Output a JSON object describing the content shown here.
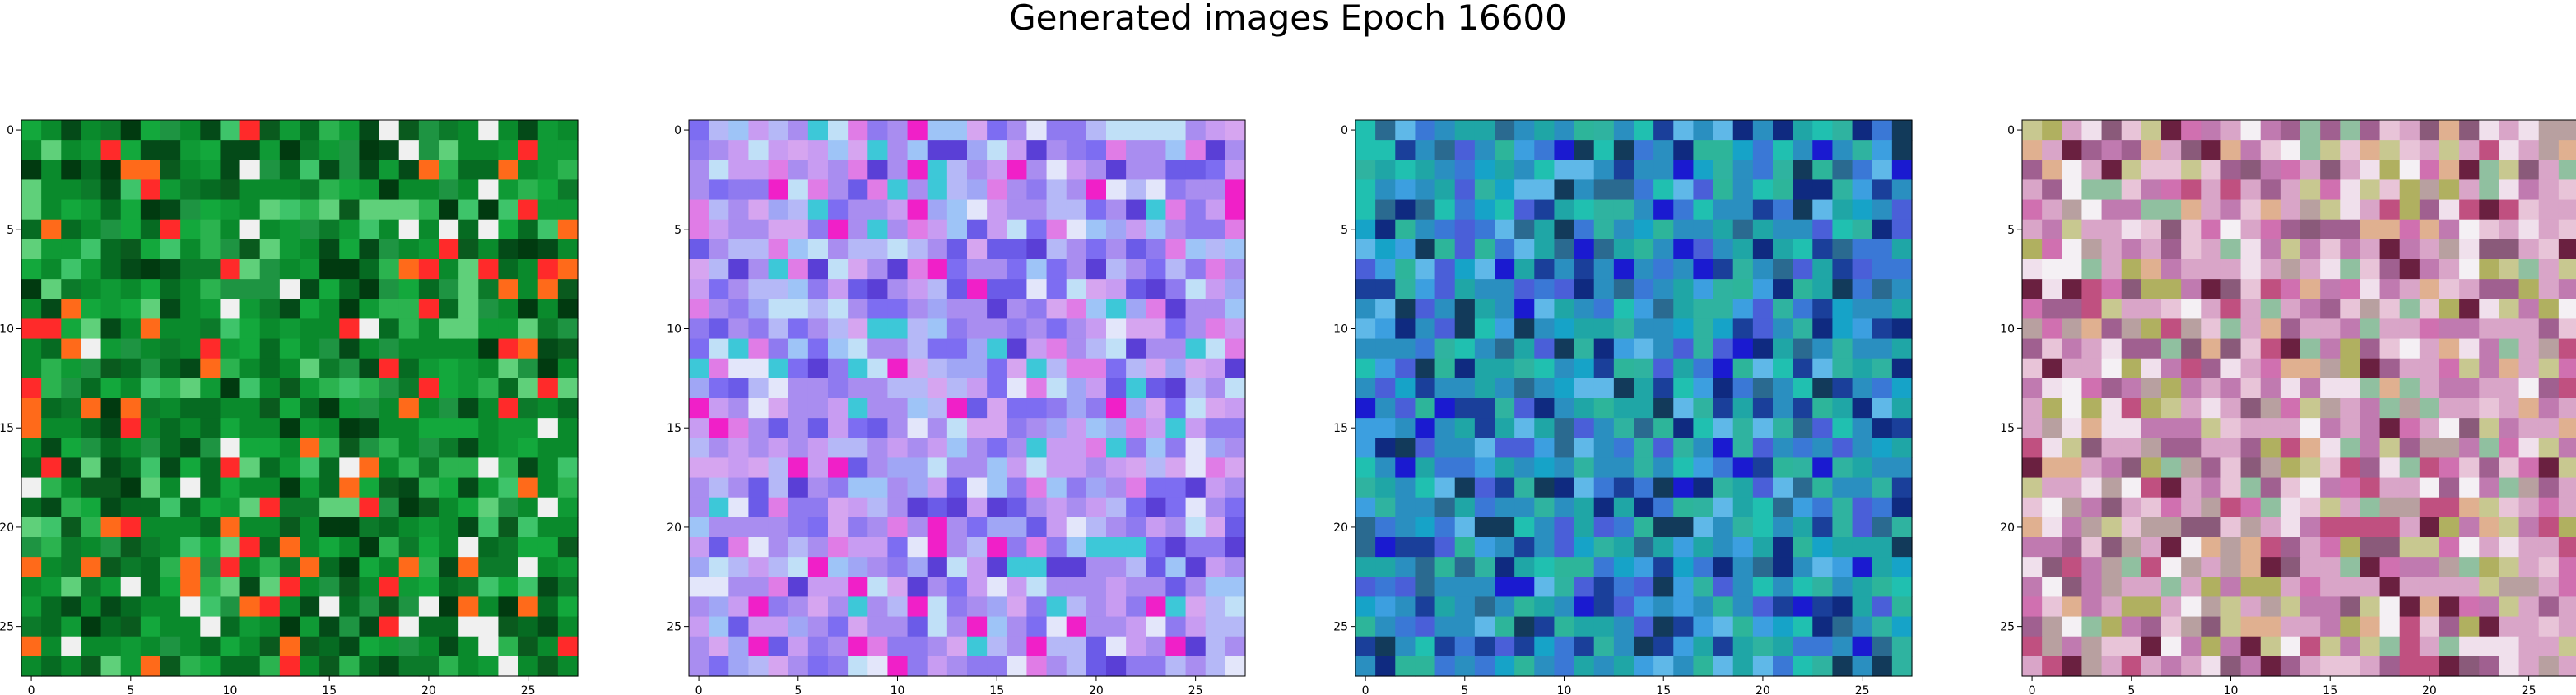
{
  "figure": {
    "title": "Generated images Epoch 16600"
  },
  "chart_data": [
    {
      "type": "heatmap",
      "panel": 1,
      "grid": false,
      "xlim": [
        -0.5,
        27.5
      ],
      "ylim": [
        27.5,
        -0.5
      ],
      "xticks": [
        "0",
        "5",
        "10",
        "15",
        "20",
        "25"
      ],
      "yticks": [
        "0",
        "5",
        "10",
        "15",
        "20",
        "25"
      ],
      "palette": [
        "#0a8a2c",
        "#0f9a35",
        "#066b22",
        "#044a18",
        "#13a83c",
        "#2bb34f",
        "#5fd07a",
        "#0c7a2a",
        "#1e9442",
        "#ff6a1a",
        "#ff2a2a",
        "#f0f0f0",
        "#0a5a1e",
        "#3ec46a",
        "#013a10"
      ]
    },
    {
      "type": "heatmap",
      "panel": 2,
      "grid": false,
      "xlim": [
        -0.5,
        27.5
      ],
      "ylim": [
        27.5,
        -0.5
      ],
      "xticks": [
        "0",
        "5",
        "10",
        "15",
        "20",
        "25"
      ],
      "yticks": [
        "0",
        "5",
        "10",
        "15",
        "20",
        "25"
      ],
      "palette": [
        "#a98df0",
        "#c89cf2",
        "#8f7af0",
        "#b5b8f7",
        "#d6a5f0",
        "#7d6df2",
        "#e07ce6",
        "#9ec4f7",
        "#c0e0f7",
        "#6b5be8",
        "#e3e6fa",
        "#f020c8",
        "#3dc8d8",
        "#5a3fd6",
        "#a0a6f5"
      ]
    },
    {
      "type": "heatmap",
      "panel": 3,
      "grid": false,
      "xlim": [
        -0.5,
        27.5
      ],
      "ylim": [
        27.5,
        -0.5
      ],
      "xticks": [
        "0",
        "5",
        "10",
        "15",
        "20",
        "25"
      ],
      "yticks": [
        "0",
        "5",
        "10",
        "15",
        "20",
        "25"
      ],
      "palette": [
        "#2a8fc0",
        "#1fa6a6",
        "#3a78d6",
        "#2fb3a0",
        "#4a5fd8",
        "#1a3f9a",
        "#20c0b0",
        "#3c9fe0",
        "#2a6a90",
        "#0f2a80",
        "#16a3c8",
        "#5fb8e8",
        "#2db59a",
        "#123a5a",
        "#1a1ad0"
      ]
    },
    {
      "type": "heatmap",
      "panel": 4,
      "grid": false,
      "xlim": [
        -0.5,
        27.5
      ],
      "ylim": [
        27.5,
        -0.5
      ],
      "xticks": [
        "0",
        "5",
        "10",
        "15",
        "20",
        "25"
      ],
      "yticks": [
        "0",
        "5",
        "10",
        "15",
        "20",
        "25"
      ],
      "palette": [
        "#d9a5c8",
        "#c07ab0",
        "#e8c4d8",
        "#b8a0a0",
        "#f0e0ec",
        "#a06090",
        "#d070b0",
        "#c8c890",
        "#90c0a0",
        "#6a2040",
        "#e0b090",
        "#8a5a7a",
        "#f4f0f4",
        "#c05080",
        "#b0b060"
      ]
    }
  ]
}
